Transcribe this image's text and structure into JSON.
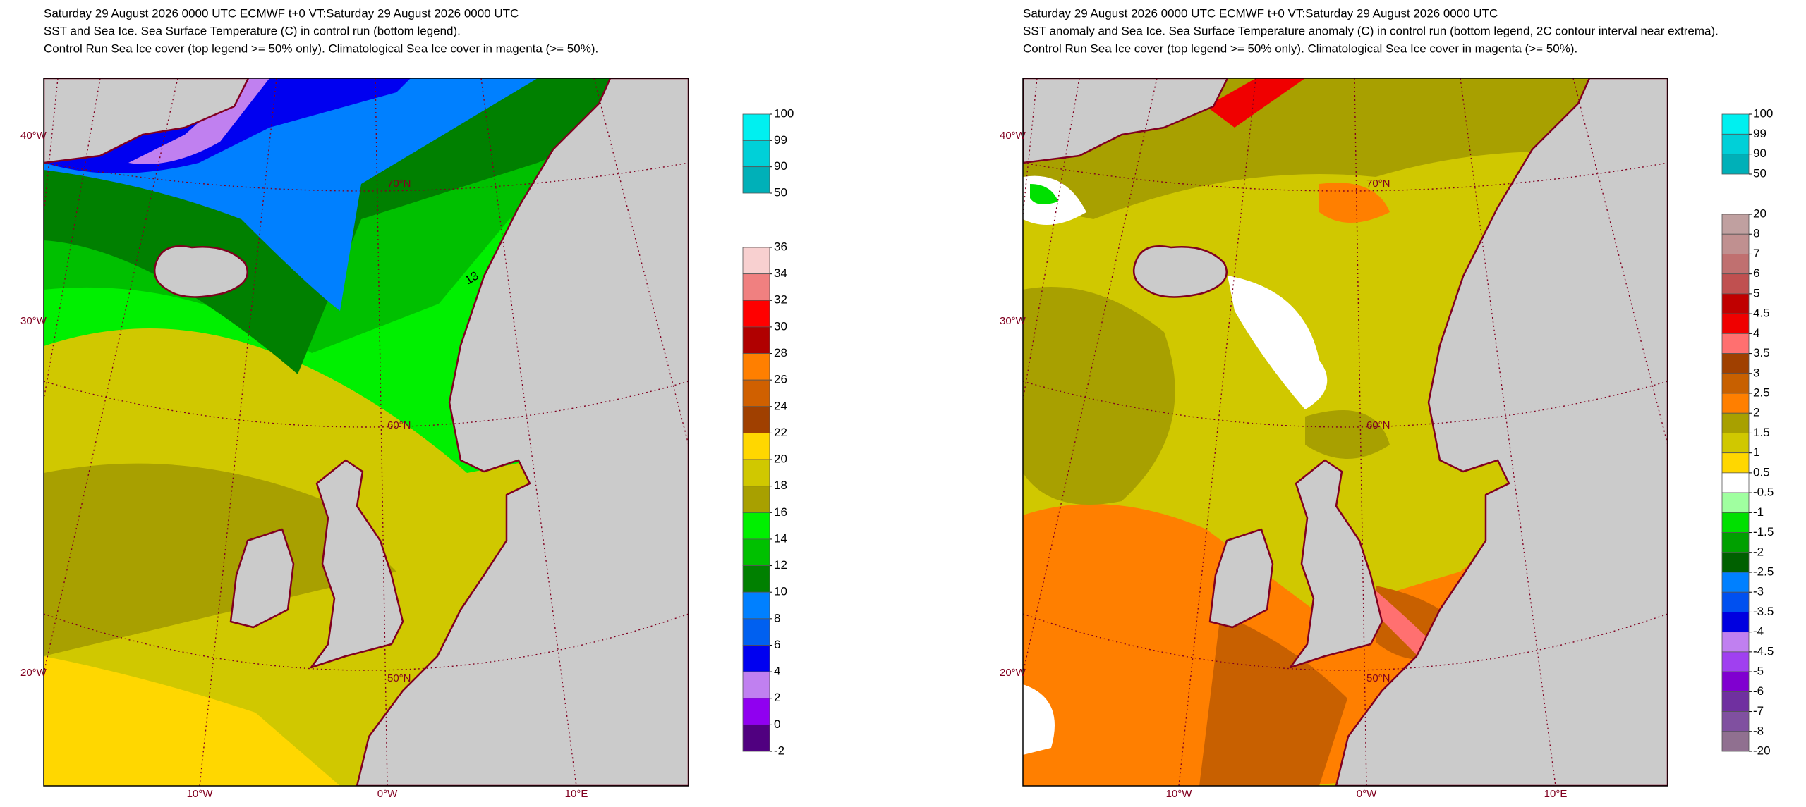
{
  "panels": [
    {
      "title_lines": [
        "Saturday 29 August 2026 0000 UTC  ECMWF  t+0  VT:Saturday 29 August 2026 0000 UTC",
        "SST and Sea Ice. Sea Surface Temperature (C) in control run (bottom legend).",
        "Control Run Sea Ice cover (top legend >= 50% only). Climatological Sea Ice cover in magenta (>= 50%)."
      ],
      "map": {
        "lat_labels": [
          "70°N",
          "60°N",
          "50°N"
        ],
        "lon_left_labels": [
          "40°W",
          "30°W",
          "20°W"
        ],
        "lon_bottom_labels": [
          "10°W",
          "0°W",
          "10°E"
        ],
        "contour_label": 13
      },
      "legends": [
        {
          "ticks": [
            100,
            99,
            90,
            50
          ],
          "colors": [
            "#00f0f0",
            "#00d0d8",
            "#00b0b8"
          ]
        },
        {
          "ticks": [
            36,
            34,
            32,
            30,
            28,
            26,
            24,
            22,
            20,
            18,
            16,
            14,
            12,
            10,
            8,
            6,
            4,
            2,
            0,
            -2
          ],
          "colors": [
            "#f8d0d0",
            "#f08080",
            "#ff0000",
            "#b00000",
            "#ff7f00",
            "#d06000",
            "#a04000",
            "#ffd700",
            "#d0c800",
            "#a8a000",
            "#00f000",
            "#00c000",
            "#008000",
            "#0080ff",
            "#0060f0",
            "#0000f0",
            "#c080f0",
            "#9000f0",
            "#500080"
          ]
        }
      ]
    },
    {
      "title_lines": [
        "Saturday 29 August 2026 0000 UTC  ECMWF  t+0  VT:Saturday 29 August 2026 0000 UTC",
        "SST anomaly and Sea Ice. Sea Surface Temperature anomaly (C) in control run (bottom legend, 2C contour interval near extrema).",
        "Control Run Sea Ice cover (top legend >= 50% only). Climatological Sea Ice cover in magenta (>= 50%)."
      ],
      "map": {
        "lat_labels": [
          "70°N",
          "60°N",
          "50°N"
        ],
        "lon_left_labels": [
          "40°W",
          "30°W",
          "20°W"
        ],
        "lon_bottom_labels": [
          "10°W",
          "0°W",
          "10°E"
        ]
      },
      "legends": [
        {
          "ticks": [
            100,
            99,
            90,
            50
          ],
          "colors": [
            "#00f0f0",
            "#00d0d8",
            "#00b0b8"
          ]
        },
        {
          "ticks": [
            20,
            8,
            7,
            6,
            5,
            4.5,
            4,
            3.5,
            3,
            2.5,
            2,
            1.5,
            1,
            0.5,
            -0.5,
            -1,
            -1.5,
            -2,
            -2.5,
            -3,
            -3.5,
            -4,
            -4.5,
            -5,
            -6,
            -7,
            -8,
            -20
          ],
          "colors": [
            "#c0a0a0",
            "#c09090",
            "#c07070",
            "#c05050",
            "#c00000",
            "#f00000",
            "#ff7070",
            "#a04000",
            "#c86000",
            "#ff7f00",
            "#a8a000",
            "#d0c800",
            "#ffd700",
            "#ffffff",
            "#a0ffa0",
            "#00e000",
            "#00a000",
            "#006000",
            "#0080ff",
            "#0050f0",
            "#0000e0",
            "#c080f0",
            "#a040f0",
            "#8000d0",
            "#7030a0",
            "#8050a0",
            "#907090"
          ]
        }
      ]
    }
  ]
}
